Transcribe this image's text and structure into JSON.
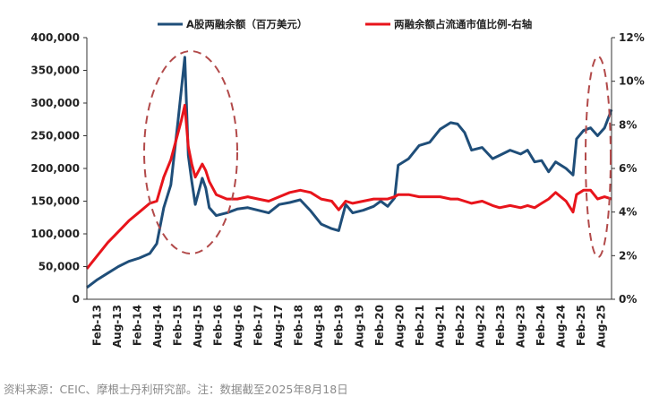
{
  "chart_data": {
    "type": "line",
    "title": "",
    "legend_position": "top",
    "grid": false,
    "x_ticks": [
      "Feb-13",
      "Aug-13",
      "Feb-14",
      "Aug-14",
      "Feb-15",
      "Aug-15",
      "Feb-16",
      "Aug-16",
      "Feb-17",
      "Aug-17",
      "Feb-18",
      "Aug-18",
      "Feb-19",
      "Aug-19",
      "Feb-20",
      "Aug-20",
      "Feb-21",
      "Aug-21",
      "Feb-22",
      "Aug-22",
      "Feb-23",
      "Aug-23",
      "Feb-24",
      "Aug-24",
      "Feb-25",
      "Aug-25"
    ],
    "x_range": [
      "2013-02",
      "2025-08"
    ],
    "y_left": {
      "ticks": [
        "0",
        "50,000",
        "100,000",
        "150,000",
        "200,000",
        "250,000",
        "300,000",
        "350,000",
        "400,000"
      ],
      "range": [
        0,
        400000
      ]
    },
    "y_right": {
      "ticks": [
        "0%",
        "2%",
        "4%",
        "6%",
        "8%",
        "10%",
        "12%"
      ],
      "range": [
        0,
        12
      ]
    },
    "series": [
      {
        "name": "A股两融余额（百万美元）",
        "axis": "left",
        "color": "#1f4e79",
        "points": [
          [
            "2013-02",
            18000
          ],
          [
            "2013-05",
            30000
          ],
          [
            "2013-08",
            40000
          ],
          [
            "2013-11",
            50000
          ],
          [
            "2014-02",
            58000
          ],
          [
            "2014-05",
            63000
          ],
          [
            "2014-08",
            70000
          ],
          [
            "2014-10",
            85000
          ],
          [
            "2014-12",
            140000
          ],
          [
            "2015-02",
            175000
          ],
          [
            "2015-04",
            270000
          ],
          [
            "2015-05",
            320000
          ],
          [
            "2015-06",
            370000
          ],
          [
            "2015-07",
            220000
          ],
          [
            "2015-08",
            180000
          ],
          [
            "2015-09",
            145000
          ],
          [
            "2015-11",
            185000
          ],
          [
            "2015-12",
            170000
          ],
          [
            "2016-01",
            140000
          ],
          [
            "2016-03",
            128000
          ],
          [
            "2016-06",
            132000
          ],
          [
            "2016-09",
            138000
          ],
          [
            "2016-12",
            140000
          ],
          [
            "2017-03",
            136000
          ],
          [
            "2017-06",
            132000
          ],
          [
            "2017-09",
            145000
          ],
          [
            "2017-12",
            148000
          ],
          [
            "2018-03",
            152000
          ],
          [
            "2018-06",
            135000
          ],
          [
            "2018-09",
            115000
          ],
          [
            "2018-12",
            108000
          ],
          [
            "2019-02",
            105000
          ],
          [
            "2019-04",
            145000
          ],
          [
            "2019-06",
            132000
          ],
          [
            "2019-09",
            136000
          ],
          [
            "2019-12",
            142000
          ],
          [
            "2020-02",
            150000
          ],
          [
            "2020-04",
            142000
          ],
          [
            "2020-06",
            155000
          ],
          [
            "2020-07",
            205000
          ],
          [
            "2020-10",
            215000
          ],
          [
            "2021-01",
            235000
          ],
          [
            "2021-04",
            240000
          ],
          [
            "2021-07",
            260000
          ],
          [
            "2021-10",
            270000
          ],
          [
            "2021-12",
            268000
          ],
          [
            "2022-02",
            255000
          ],
          [
            "2022-04",
            228000
          ],
          [
            "2022-07",
            232000
          ],
          [
            "2022-10",
            215000
          ],
          [
            "2022-12",
            220000
          ],
          [
            "2023-03",
            228000
          ],
          [
            "2023-06",
            222000
          ],
          [
            "2023-08",
            228000
          ],
          [
            "2023-10",
            210000
          ],
          [
            "2023-12",
            212000
          ],
          [
            "2024-02",
            195000
          ],
          [
            "2024-04",
            210000
          ],
          [
            "2024-07",
            200000
          ],
          [
            "2024-09",
            190000
          ],
          [
            "2024-10",
            245000
          ],
          [
            "2024-12",
            258000
          ],
          [
            "2025-02",
            262000
          ],
          [
            "2025-04",
            250000
          ],
          [
            "2025-06",
            262000
          ],
          [
            "2025-08",
            290000
          ]
        ]
      },
      {
        "name": "两融余额占流通市值比例-右轴",
        "axis": "right",
        "color": "#e8141b",
        "points": [
          [
            "2013-02",
            1.4
          ],
          [
            "2013-05",
            2.0
          ],
          [
            "2013-08",
            2.6
          ],
          [
            "2013-11",
            3.1
          ],
          [
            "2014-02",
            3.6
          ],
          [
            "2014-05",
            4.0
          ],
          [
            "2014-08",
            4.4
          ],
          [
            "2014-10",
            4.5
          ],
          [
            "2014-12",
            5.6
          ],
          [
            "2015-02",
            6.4
          ],
          [
            "2015-04",
            7.6
          ],
          [
            "2015-05",
            8.2
          ],
          [
            "2015-06",
            8.9
          ],
          [
            "2015-07",
            7.0
          ],
          [
            "2015-08",
            6.2
          ],
          [
            "2015-09",
            5.6
          ],
          [
            "2015-11",
            6.2
          ],
          [
            "2015-12",
            5.9
          ],
          [
            "2016-01",
            5.4
          ],
          [
            "2016-03",
            4.8
          ],
          [
            "2016-06",
            4.6
          ],
          [
            "2016-09",
            4.6
          ],
          [
            "2016-12",
            4.7
          ],
          [
            "2017-03",
            4.6
          ],
          [
            "2017-06",
            4.5
          ],
          [
            "2017-09",
            4.7
          ],
          [
            "2017-12",
            4.9
          ],
          [
            "2018-03",
            5.0
          ],
          [
            "2018-06",
            4.9
          ],
          [
            "2018-09",
            4.6
          ],
          [
            "2018-12",
            4.5
          ],
          [
            "2019-02",
            4.1
          ],
          [
            "2019-04",
            4.5
          ],
          [
            "2019-06",
            4.4
          ],
          [
            "2019-09",
            4.5
          ],
          [
            "2019-12",
            4.6
          ],
          [
            "2020-02",
            4.6
          ],
          [
            "2020-04",
            4.6
          ],
          [
            "2020-06",
            4.7
          ],
          [
            "2020-07",
            4.8
          ],
          [
            "2020-10",
            4.8
          ],
          [
            "2021-01",
            4.7
          ],
          [
            "2021-04",
            4.7
          ],
          [
            "2021-07",
            4.7
          ],
          [
            "2021-10",
            4.6
          ],
          [
            "2021-12",
            4.6
          ],
          [
            "2022-02",
            4.5
          ],
          [
            "2022-04",
            4.4
          ],
          [
            "2022-07",
            4.5
          ],
          [
            "2022-10",
            4.3
          ],
          [
            "2022-12",
            4.2
          ],
          [
            "2023-03",
            4.3
          ],
          [
            "2023-06",
            4.2
          ],
          [
            "2023-08",
            4.3
          ],
          [
            "2023-10",
            4.2
          ],
          [
            "2023-12",
            4.4
          ],
          [
            "2024-02",
            4.6
          ],
          [
            "2024-04",
            4.9
          ],
          [
            "2024-07",
            4.5
          ],
          [
            "2024-09",
            4.0
          ],
          [
            "2024-10",
            4.8
          ],
          [
            "2024-12",
            5.0
          ],
          [
            "2025-02",
            5.0
          ],
          [
            "2025-04",
            4.6
          ],
          [
            "2025-06",
            4.7
          ],
          [
            "2025-08",
            4.6
          ]
        ]
      }
    ]
  },
  "source_note": "资料来源：CEIC、摩根士丹利研究部。注：数据截至2025年8月18日"
}
